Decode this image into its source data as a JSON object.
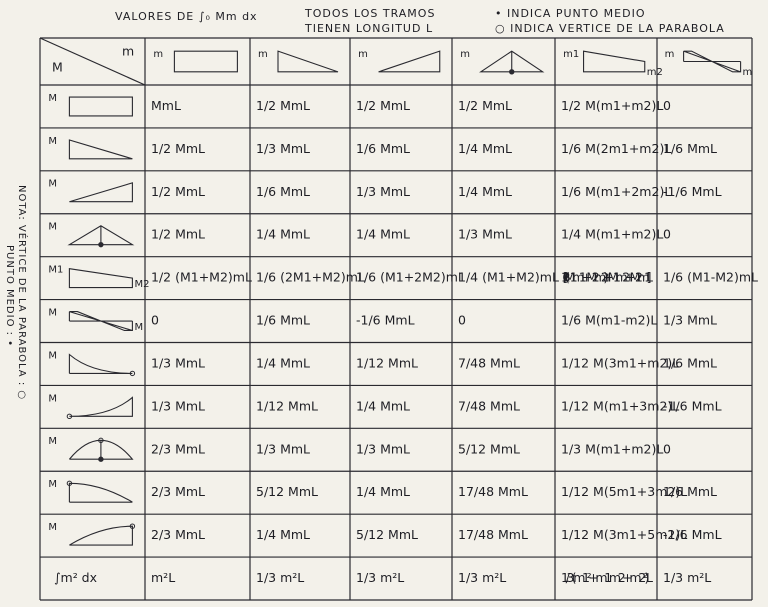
{
  "header": {
    "title": "VALORES DE ∫₀ Mm dx",
    "note_1": [
      "TODOS LOS TRAMOS",
      "TIENEN LONGITUD L"
    ],
    "note_2": "• INDICA PUNTO MEDIO",
    "note_3": "○ INDICA VERTICE DE LA PARABOLA"
  },
  "side_note": [
    "NOTA: VÉRTICE DE LA PARABOLA : ○",
    "PUNTO MEDIO : •"
  ],
  "table": {
    "corner": [
      "M",
      "m"
    ],
    "column_labels": [
      [
        "m"
      ],
      [
        "m"
      ],
      [
        "m"
      ],
      [
        "m"
      ],
      [
        "m1",
        "m2"
      ],
      [
        "m",
        "m"
      ]
    ],
    "rows": [
      {
        "labels": [
          "M"
        ],
        "cells": [
          "MmL",
          "1/2 MmL",
          "1/2 MmL",
          "1/2 MmL",
          "1/2 M(m1+m2)L",
          "0"
        ]
      },
      {
        "labels": [
          "M"
        ],
        "cells": [
          "1/2 MmL",
          "1/3 MmL",
          "1/6 MmL",
          "1/4 MmL",
          "1/6 M(2m1+m2)L",
          "1/6 MmL"
        ]
      },
      {
        "labels": [
          "M"
        ],
        "cells": [
          "1/2 MmL",
          "1/6 MmL",
          "1/3 MmL",
          "1/4 MmL",
          "1/6 M(m1+2m2)L",
          "-1/6 MmL"
        ]
      },
      {
        "labels": [
          "M"
        ],
        "cells": [
          "1/2 MmL",
          "1/4 MmL",
          "1/4 MmL",
          "1/3 MmL",
          "1/4 M(m1+m2)L",
          "0"
        ]
      },
      {
        "labels": [
          "M1",
          "M2"
        ],
        "cells": [
          "1/2 (M1+M2)mL",
          "1/6 (2M1+M2)mL",
          "1/6 (M1+2M2)mL",
          "1/4 (M1+M2)mL",
          "1/6 [2(M1m1+M2m2)+M1m2+M2m1]L",
          "1/6 (M1-M2)mL"
        ]
      },
      {
        "labels": [
          "M",
          "M"
        ],
        "cells": [
          "0",
          "1/6 MmL",
          "-1/6 MmL",
          "0",
          "1/6 M(m1-m2)L",
          "1/3 MmL"
        ]
      },
      {
        "labels": [
          "M"
        ],
        "cells": [
          "1/3 MmL",
          "1/4 MmL",
          "1/12 MmL",
          "7/48 MmL",
          "1/12 M(3m1+m2)L",
          "1/6 MmL"
        ]
      },
      {
        "labels": [
          "M"
        ],
        "cells": [
          "1/3 MmL",
          "1/12 MmL",
          "1/4 MmL",
          "7/48 MmL",
          "1/12 M(m1+3m2)L",
          "-1/6 MmL"
        ]
      },
      {
        "labels": [
          "M"
        ],
        "cells": [
          "2/3 MmL",
          "1/3 MmL",
          "1/3 MmL",
          "5/12 MmL",
          "1/3 M(m1+m2)L",
          "0"
        ]
      },
      {
        "labels": [
          "M"
        ],
        "cells": [
          "2/3 MmL",
          "5/12 MmL",
          "1/4 MmL",
          "17/48 MmL",
          "1/12 M(5m1+3m2)L",
          "1/6 MmL"
        ]
      },
      {
        "labels": [
          "M"
        ],
        "cells": [
          "2/3 MmL",
          "1/4 MmL",
          "5/12 MmL",
          "17/48 MmL",
          "1/12 M(3m1+5m2)L",
          "-1/6 MmL"
        ]
      },
      {
        "labels": [
          "∫m² dx"
        ],
        "cells": [
          "m²L",
          "1/3 m²L",
          "1/3 m²L",
          "1/3 m²L",
          "1/3 (m1²+m1m2+m2²)L",
          "1/3 m²L"
        ]
      }
    ]
  }
}
